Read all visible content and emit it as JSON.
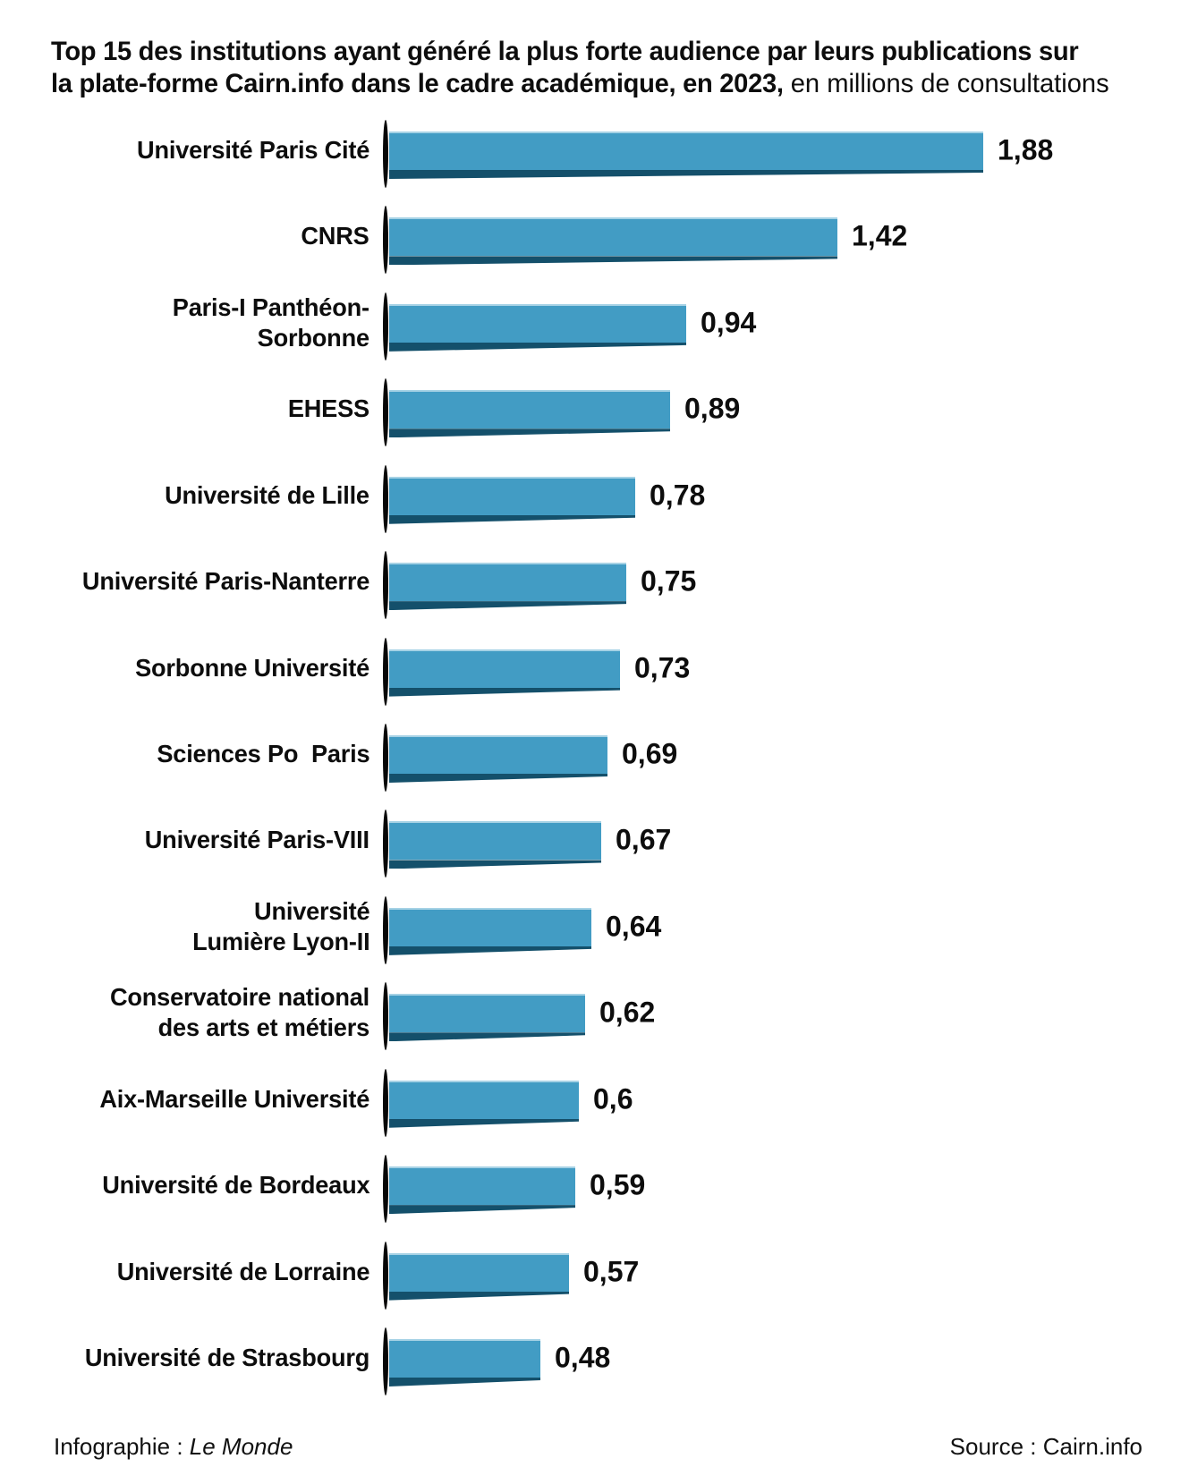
{
  "title": {
    "bold_line1": "Top 15 des institutions ayant généré la plus forte audience par leurs publications sur",
    "bold_line2": "la plate-forme Cairn.info dans le cadre académique, en 2023,",
    "regular_suffix": " en millions de consultations"
  },
  "footer": {
    "credit_prefix": "Infographie : ",
    "credit_name": "Le Monde",
    "source": "Source : Cairn.info"
  },
  "chart_data": {
    "type": "bar",
    "orientation": "horizontal",
    "title": "Top 15 des institutions ayant généré la plus forte audience par leurs publications sur la plate-forme Cairn.info dans le cadre académique, en 2023",
    "unit": "en millions de consultations",
    "categories": [
      "Université Paris Cité",
      "CNRS",
      "Paris-I Panthéon-\nSorbonne",
      "EHESS",
      "Université de Lille",
      "Université Paris-Nanterre",
      "Sorbonne Université",
      "Sciences Po  Paris",
      "Université Paris-VIII",
      "Université\nLumière Lyon-II",
      "Conservatoire national\ndes arts et métiers",
      "Aix-Marseille Université",
      "Université de Bordeaux",
      "Université de Lorraine",
      "Université de Strasbourg"
    ],
    "values": [
      1.88,
      1.42,
      0.94,
      0.89,
      0.78,
      0.75,
      0.73,
      0.69,
      0.67,
      0.64,
      0.62,
      0.6,
      0.59,
      0.57,
      0.48
    ],
    "value_labels": [
      "1,88",
      "1,42",
      "0,94",
      "0,89",
      "0,78",
      "0,75",
      "0,73",
      "0,69",
      "0,67",
      "0,64",
      "0,62",
      "0,6",
      "0,59",
      "0,57",
      "0,48"
    ],
    "xlim": [
      0,
      2
    ],
    "bar_color": "#429CC4",
    "bar_shadow_color": "#14506B",
    "axis_color": "#070707",
    "legend": "none",
    "grid": "off"
  }
}
